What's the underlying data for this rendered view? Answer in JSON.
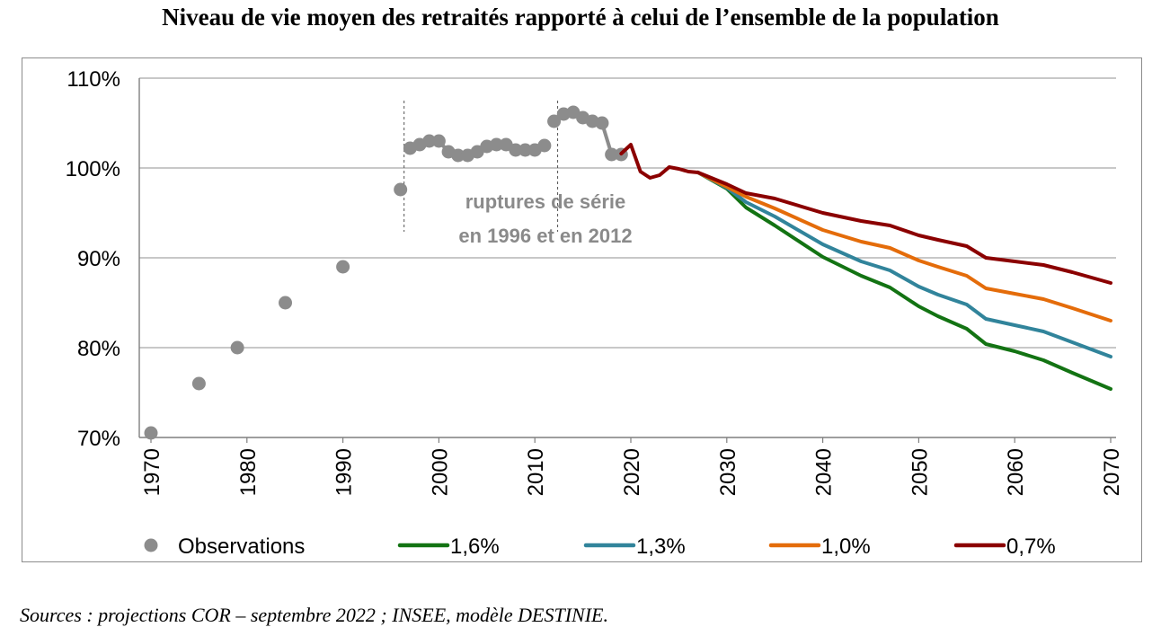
{
  "title": "Niveau de vie moyen des retraités rapporté à celui de l’ensemble de la population",
  "source": "Sources : projections COR – septembre 2022 ; INSEE, modèle DESTINIE.",
  "chart_data": {
    "type": "line",
    "xlim": [
      1970,
      2070
    ],
    "ylim": [
      70,
      110
    ],
    "x_ticks": [
      "1970",
      "1980",
      "1990",
      "2000",
      "2010",
      "2020",
      "2030",
      "2040",
      "2050",
      "2060",
      "2070"
    ],
    "y_ticks": [
      "70%",
      "80%",
      "90%",
      "100%",
      "110%"
    ],
    "grid": "horizontal",
    "legend_position": "bottom",
    "annotation": {
      "line1": "ruptures de série",
      "line2": "en 1996 et en 2012",
      "break_years": [
        1996,
        2012
      ]
    },
    "observations": {
      "name": "Observations",
      "color": "#8c8c8c",
      "isolated": [
        [
          1970,
          70.5
        ],
        [
          1975,
          76
        ],
        [
          1979,
          80
        ],
        [
          1984,
          85
        ],
        [
          1990,
          89
        ],
        [
          1996,
          97.6
        ]
      ],
      "segment_1": [
        [
          1997,
          102.2
        ],
        [
          1998,
          102.6
        ],
        [
          1999,
          103
        ],
        [
          2000,
          103
        ],
        [
          2001,
          101.8
        ],
        [
          2002,
          101.4
        ],
        [
          2003,
          101.4
        ],
        [
          2004,
          101.8
        ],
        [
          2005,
          102.4
        ],
        [
          2006,
          102.6
        ],
        [
          2007,
          102.6
        ],
        [
          2008,
          102
        ],
        [
          2009,
          102
        ],
        [
          2010,
          102
        ],
        [
          2011,
          102.5
        ]
      ],
      "segment_2": [
        [
          2012,
          105.2
        ],
        [
          2013,
          106
        ],
        [
          2014,
          106.2
        ],
        [
          2015,
          105.6
        ],
        [
          2016,
          105.2
        ],
        [
          2017,
          105
        ],
        [
          2018,
          101.5
        ],
        [
          2019,
          101.5
        ]
      ]
    },
    "common_projection": [
      [
        2019,
        101.6
      ],
      [
        2020,
        102.6
      ],
      [
        2021,
        99.6
      ],
      [
        2022,
        98.9
      ],
      [
        2023,
        99.2
      ],
      [
        2024,
        100.1
      ],
      [
        2025,
        99.9
      ],
      [
        2026,
        99.6
      ],
      [
        2027,
        99.5
      ]
    ],
    "series": [
      {
        "name": "1,6%",
        "color": "#137313",
        "points": [
          [
            2027,
            99.5
          ],
          [
            2030,
            97.7
          ],
          [
            2032,
            95.6
          ],
          [
            2035,
            93.6
          ],
          [
            2040,
            90.1
          ],
          [
            2044,
            88
          ],
          [
            2047,
            86.7
          ],
          [
            2050,
            84.6
          ],
          [
            2052,
            83.5
          ],
          [
            2055,
            82.1
          ],
          [
            2057,
            80.4
          ],
          [
            2060,
            79.6
          ],
          [
            2063,
            78.6
          ],
          [
            2066,
            77.2
          ],
          [
            2070,
            75.4
          ]
        ]
      },
      {
        "name": "1,3%",
        "color": "#31849b",
        "points": [
          [
            2027,
            99.5
          ],
          [
            2030,
            97.8
          ],
          [
            2032,
            96.2
          ],
          [
            2035,
            94.6
          ],
          [
            2040,
            91.5
          ],
          [
            2044,
            89.6
          ],
          [
            2047,
            88.6
          ],
          [
            2050,
            86.8
          ],
          [
            2052,
            85.9
          ],
          [
            2055,
            84.8
          ],
          [
            2057,
            83.2
          ],
          [
            2060,
            82.5
          ],
          [
            2063,
            81.8
          ],
          [
            2066,
            80.6
          ],
          [
            2070,
            79
          ]
        ]
      },
      {
        "name": "1,0%",
        "color": "#e46c0a",
        "points": [
          [
            2027,
            99.5
          ],
          [
            2030,
            97.9
          ],
          [
            2032,
            96.8
          ],
          [
            2035,
            95.5
          ],
          [
            2040,
            93.1
          ],
          [
            2044,
            91.8
          ],
          [
            2047,
            91.1
          ],
          [
            2050,
            89.7
          ],
          [
            2052,
            89
          ],
          [
            2055,
            88
          ],
          [
            2057,
            86.6
          ],
          [
            2060,
            86
          ],
          [
            2063,
            85.4
          ],
          [
            2066,
            84.4
          ],
          [
            2070,
            83
          ]
        ]
      },
      {
        "name": "0,7%",
        "color": "#8b0000",
        "points": [
          [
            2027,
            99.5
          ],
          [
            2030,
            98.2
          ],
          [
            2032,
            97.2
          ],
          [
            2035,
            96.6
          ],
          [
            2040,
            95
          ],
          [
            2044,
            94.1
          ],
          [
            2047,
            93.6
          ],
          [
            2050,
            92.5
          ],
          [
            2052,
            92
          ],
          [
            2055,
            91.3
          ],
          [
            2057,
            90
          ],
          [
            2060,
            89.6
          ],
          [
            2063,
            89.2
          ],
          [
            2066,
            88.4
          ],
          [
            2070,
            87.2
          ]
        ]
      }
    ]
  }
}
